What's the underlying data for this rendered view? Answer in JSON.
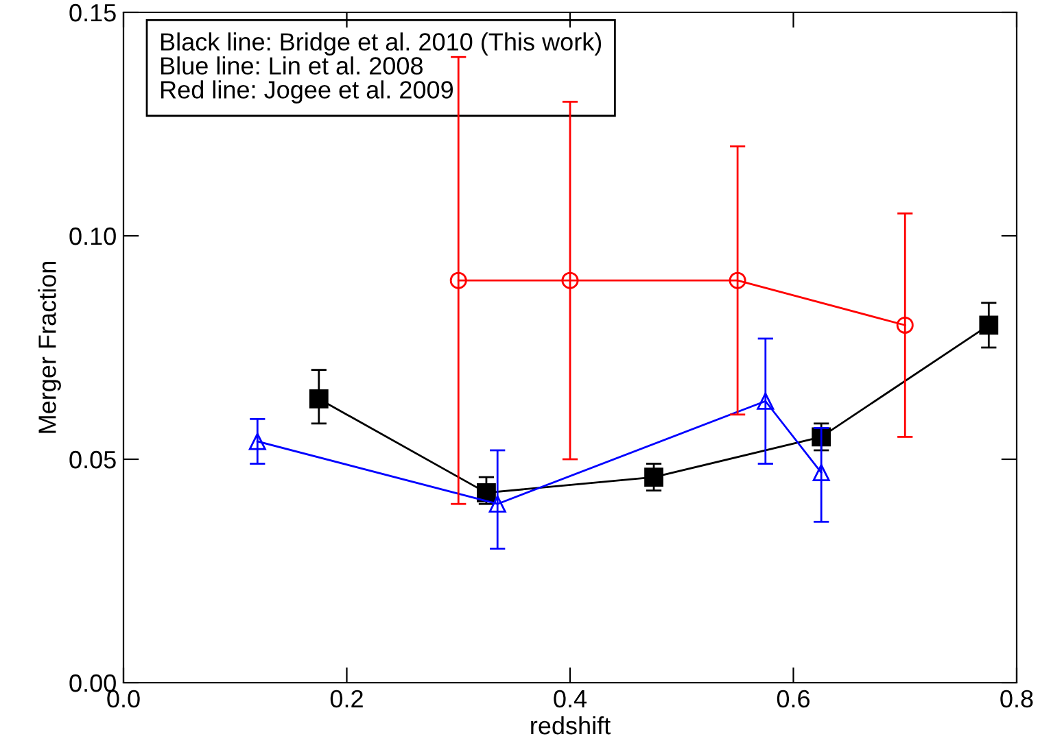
{
  "chart_data": {
    "type": "line",
    "xlabel": "redshift",
    "ylabel": "Merger Fraction",
    "xlim": [
      0.0,
      0.8
    ],
    "xticks": [
      {
        "value": 0.0,
        "label": "0.0"
      },
      {
        "value": 0.2,
        "label": "0.2"
      },
      {
        "value": 0.4,
        "label": "0.4"
      },
      {
        "value": 0.6,
        "label": "0.6"
      },
      {
        "value": 0.8,
        "label": "0.8"
      }
    ],
    "ylim": [
      0.0,
      0.15
    ],
    "yticks": [
      {
        "value": 0.0,
        "label": "0.00"
      },
      {
        "value": 0.05,
        "label": "0.05"
      },
      {
        "value": 0.1,
        "label": "0.10"
      },
      {
        "value": 0.15,
        "label": "0.15"
      }
    ],
    "grid": false,
    "legend": false,
    "annotations": [
      "Black line: Bridge et al. 2010 (This work)",
      "Blue line: Lin et al. 2008",
      "Red line: Jogee et al. 2009"
    ],
    "series": [
      {
        "color": "#000000",
        "marker": "square",
        "x": [
          0.175,
          0.325,
          0.475,
          0.625,
          0.775
        ],
        "values": [
          0.0635,
          0.0425,
          0.046,
          0.055,
          0.08
        ],
        "errors": [
          [
            0.058,
            0.07
          ],
          [
            0.04,
            0.046
          ],
          [
            0.043,
            0.049
          ],
          [
            0.052,
            0.058
          ],
          [
            0.075,
            0.085
          ]
        ]
      },
      {
        "color": "#0000ff",
        "marker": "triangle",
        "x": [
          0.12,
          0.335,
          0.575,
          0.625
        ],
        "values": [
          0.054,
          0.04,
          0.063,
          0.047
        ],
        "errors": [
          [
            0.049,
            0.059
          ],
          [
            0.03,
            0.052
          ],
          [
            0.049,
            0.077
          ],
          [
            0.036,
            0.057
          ]
        ]
      },
      {
        "color": "#ff0000",
        "marker": "circle",
        "x": [
          0.3,
          0.4,
          0.55,
          0.7
        ],
        "values": [
          0.09,
          0.09,
          0.09,
          0.08
        ],
        "errors": [
          [
            0.04,
            0.14
          ],
          [
            0.05,
            0.13
          ],
          [
            0.06,
            0.12
          ],
          [
            0.055,
            0.105
          ]
        ]
      }
    ]
  }
}
